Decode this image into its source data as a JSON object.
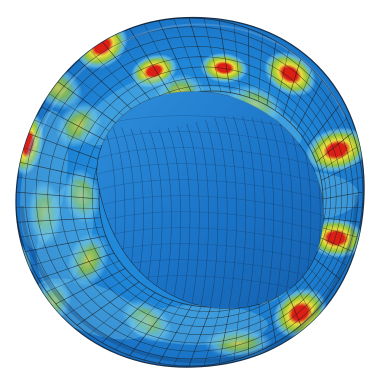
{
  "figure": {
    "subject": "tire-fea-mesh",
    "colormap": {
      "base": "#1f86d8",
      "deep_base": "#1b74c7",
      "low": "#6fc6ea",
      "mid": "#97c53a",
      "high": "#efe03a",
      "peak": "#df1c12"
    },
    "shading": {
      "mesh_line": "#1b1b1b",
      "outer_shadow": "#0d2d58"
    }
  }
}
